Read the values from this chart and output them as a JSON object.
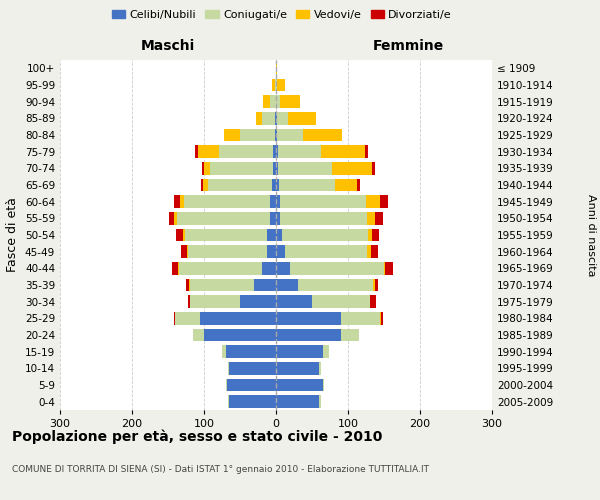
{
  "age_groups": [
    "0-4",
    "5-9",
    "10-14",
    "15-19",
    "20-24",
    "25-29",
    "30-34",
    "35-39",
    "40-44",
    "45-49",
    "50-54",
    "55-59",
    "60-64",
    "65-69",
    "70-74",
    "75-79",
    "80-84",
    "85-89",
    "90-94",
    "95-99",
    "100+"
  ],
  "birth_years": [
    "2005-2009",
    "2000-2004",
    "1995-1999",
    "1990-1994",
    "1985-1989",
    "1980-1984",
    "1975-1979",
    "1970-1974",
    "1965-1969",
    "1960-1964",
    "1955-1959",
    "1950-1954",
    "1945-1949",
    "1940-1944",
    "1935-1939",
    "1930-1934",
    "1925-1929",
    "1920-1924",
    "1915-1919",
    "1910-1914",
    "≤ 1909"
  ],
  "males": {
    "celibi": [
      65,
      68,
      65,
      70,
      100,
      105,
      50,
      30,
      20,
      12,
      12,
      8,
      8,
      5,
      4,
      4,
      2,
      2,
      0,
      0,
      0
    ],
    "coniugati": [
      2,
      2,
      2,
      5,
      15,
      35,
      70,
      90,
      115,
      110,
      115,
      130,
      120,
      90,
      88,
      75,
      48,
      18,
      8,
      2,
      0
    ],
    "vedovi": [
      0,
      0,
      0,
      0,
      0,
      0,
      0,
      1,
      1,
      2,
      2,
      3,
      5,
      6,
      8,
      30,
      22,
      8,
      10,
      3,
      0
    ],
    "divorziati": [
      0,
      0,
      0,
      0,
      0,
      1,
      2,
      4,
      8,
      8,
      10,
      8,
      8,
      3,
      3,
      3,
      0,
      0,
      0,
      0,
      0
    ]
  },
  "females": {
    "celibi": [
      60,
      65,
      60,
      65,
      90,
      90,
      50,
      30,
      20,
      12,
      8,
      6,
      5,
      4,
      3,
      3,
      2,
      1,
      0,
      0,
      0
    ],
    "coniugati": [
      2,
      2,
      3,
      8,
      25,
      55,
      80,
      105,
      130,
      115,
      120,
      120,
      120,
      78,
      75,
      60,
      35,
      15,
      5,
      2,
      0
    ],
    "vedovi": [
      0,
      0,
      0,
      0,
      0,
      1,
      1,
      2,
      2,
      5,
      5,
      12,
      20,
      30,
      55,
      60,
      55,
      40,
      28,
      10,
      1
    ],
    "divorziati": [
      0,
      0,
      0,
      0,
      0,
      2,
      8,
      5,
      10,
      10,
      10,
      10,
      10,
      5,
      5,
      5,
      0,
      0,
      0,
      0,
      0
    ]
  },
  "colors": {
    "celibi": "#4472c4",
    "coniugati": "#c5d9a0",
    "vedovi": "#ffc000",
    "divorziati": "#cc0000"
  },
  "xlim": 300,
  "title": "Popolazione per età, sesso e stato civile - 2010",
  "subtitle": "COMUNE DI TORRITA DI SIENA (SI) - Dati ISTAT 1° gennaio 2010 - Elaborazione TUTTITALIA.IT",
  "ylabel_left": "Fasce di età",
  "ylabel_right": "Anni di nascita",
  "xlabel_left": "Maschi",
  "xlabel_right": "Femmine",
  "bg_color": "#f0f0ea",
  "plot_bg_color": "#ffffff"
}
